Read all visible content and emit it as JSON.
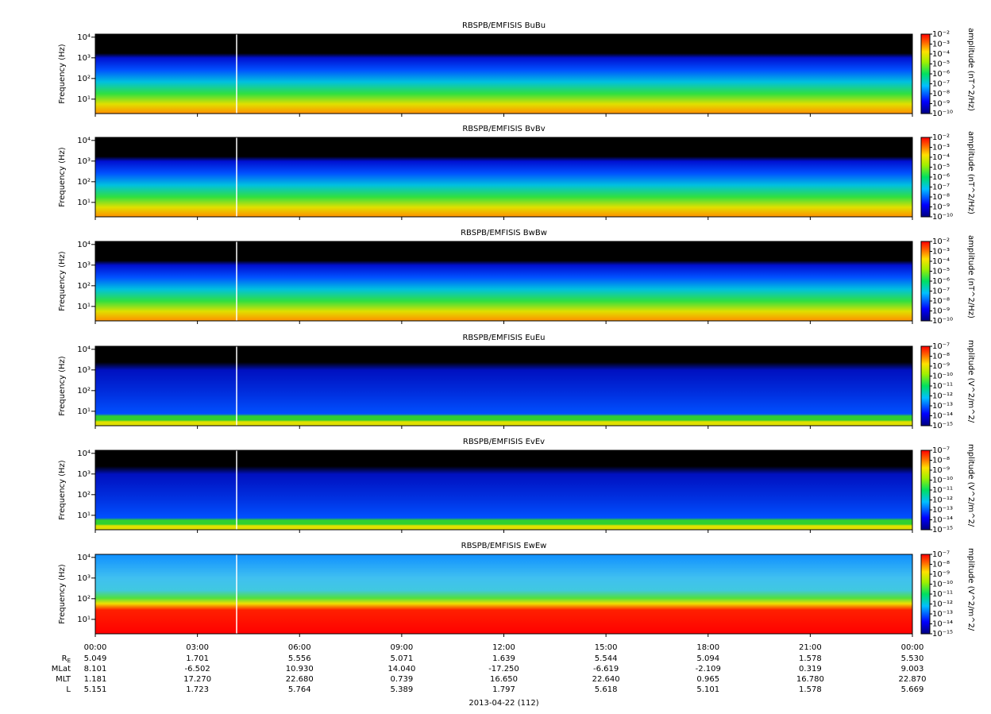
{
  "chart_data": [
    {
      "type": "spectrogram",
      "title": "RBSPB/EMFISIS  BuBu",
      "ylabel": "Frequency (Hz)",
      "log_y": true,
      "ylim": [
        2,
        14000
      ],
      "yticks": [
        {
          "value": 10,
          "label": "10¹"
        },
        {
          "value": 100,
          "label": "10²"
        },
        {
          "value": 1000,
          "label": "10³"
        },
        {
          "value": 10000,
          "label": "10⁴"
        }
      ],
      "colorbar_label": "amplitude (nT^2/Hz)",
      "clim": [
        1e-10,
        0.01
      ],
      "cticks": [
        {
          "value": 0.01,
          "label": "10⁻²"
        },
        {
          "value": 0.001,
          "label": "10⁻³"
        },
        {
          "value": 0.0001,
          "label": "10⁻⁴"
        },
        {
          "value": 1e-05,
          "label": "10⁻⁵"
        },
        {
          "value": 1e-06,
          "label": "10⁻⁶"
        },
        {
          "value": 1e-07,
          "label": "10⁻⁷"
        },
        {
          "value": 1e-08,
          "label": "10⁻⁸"
        },
        {
          "value": 1e-09,
          "label": "10⁻⁹"
        },
        {
          "value": 1e-10,
          "label": "10⁻¹⁰"
        }
      ]
    },
    {
      "type": "spectrogram",
      "title": "RBSPB/EMFISIS  BvBv",
      "ylabel": "Frequency (Hz)",
      "log_y": true,
      "ylim": [
        2,
        14000
      ],
      "yticks": [
        {
          "value": 10,
          "label": "10¹"
        },
        {
          "value": 100,
          "label": "10²"
        },
        {
          "value": 1000,
          "label": "10³"
        },
        {
          "value": 10000,
          "label": "10⁴"
        }
      ],
      "colorbar_label": "amplitude (nT^2/Hz)",
      "clim": [
        1e-10,
        0.01
      ],
      "cticks": [
        {
          "value": 0.01,
          "label": "10⁻²"
        },
        {
          "value": 0.001,
          "label": "10⁻³"
        },
        {
          "value": 0.0001,
          "label": "10⁻⁴"
        },
        {
          "value": 1e-05,
          "label": "10⁻⁵"
        },
        {
          "value": 1e-06,
          "label": "10⁻⁶"
        },
        {
          "value": 1e-07,
          "label": "10⁻⁷"
        },
        {
          "value": 1e-08,
          "label": "10⁻⁸"
        },
        {
          "value": 1e-09,
          "label": "10⁻⁹"
        },
        {
          "value": 1e-10,
          "label": "10⁻¹⁰"
        }
      ]
    },
    {
      "type": "spectrogram",
      "title": "RBSPB/EMFISIS  BwBw",
      "ylabel": "Frequency (Hz)",
      "log_y": true,
      "ylim": [
        2,
        14000
      ],
      "yticks": [
        {
          "value": 10,
          "label": "10¹"
        },
        {
          "value": 100,
          "label": "10²"
        },
        {
          "value": 1000,
          "label": "10³"
        },
        {
          "value": 10000,
          "label": "10⁴"
        }
      ],
      "colorbar_label": "amplitude (nT^2/Hz)",
      "clim": [
        1e-10,
        0.01
      ],
      "cticks": [
        {
          "value": 0.01,
          "label": "10⁻²"
        },
        {
          "value": 0.001,
          "label": "10⁻³"
        },
        {
          "value": 0.0001,
          "label": "10⁻⁴"
        },
        {
          "value": 1e-05,
          "label": "10⁻⁵"
        },
        {
          "value": 1e-06,
          "label": "10⁻⁶"
        },
        {
          "value": 1e-07,
          "label": "10⁻⁷"
        },
        {
          "value": 1e-08,
          "label": "10⁻⁸"
        },
        {
          "value": 1e-09,
          "label": "10⁻⁹"
        },
        {
          "value": 1e-10,
          "label": "10⁻¹⁰"
        }
      ]
    },
    {
      "type": "spectrogram",
      "title": "RBSPB/EMFISIS  EuEu",
      "ylabel": "Frequency (Hz)",
      "log_y": true,
      "ylim": [
        2,
        14000
      ],
      "yticks": [
        {
          "value": 10,
          "label": "10¹"
        },
        {
          "value": 100,
          "label": "10²"
        },
        {
          "value": 1000,
          "label": "10³"
        },
        {
          "value": 10000,
          "label": "10⁴"
        }
      ],
      "colorbar_label": "mplitude (V^2/m^2/",
      "clim": [
        1e-15,
        1e-07
      ],
      "cticks": [
        {
          "value": 1e-07,
          "label": "10⁻⁷"
        },
        {
          "value": 1e-08,
          "label": "10⁻⁸"
        },
        {
          "value": 1e-09,
          "label": "10⁻⁹"
        },
        {
          "value": 1e-10,
          "label": "10⁻¹⁰"
        },
        {
          "value": 1e-11,
          "label": "10⁻¹¹"
        },
        {
          "value": 1e-12,
          "label": "10⁻¹²"
        },
        {
          "value": 1e-13,
          "label": "10⁻¹³"
        },
        {
          "value": 1e-14,
          "label": "10⁻¹⁴"
        },
        {
          "value": 1e-15,
          "label": "10⁻¹⁵"
        }
      ]
    },
    {
      "type": "spectrogram",
      "title": "RBSPB/EMFISIS  EvEv",
      "ylabel": "Frequency (Hz)",
      "log_y": true,
      "ylim": [
        2,
        14000
      ],
      "yticks": [
        {
          "value": 10,
          "label": "10¹"
        },
        {
          "value": 100,
          "label": "10²"
        },
        {
          "value": 1000,
          "label": "10³"
        },
        {
          "value": 10000,
          "label": "10⁴"
        }
      ],
      "colorbar_label": "mplitude (V^2/m^2/",
      "clim": [
        1e-15,
        1e-07
      ],
      "cticks": [
        {
          "value": 1e-07,
          "label": "10⁻⁷"
        },
        {
          "value": 1e-08,
          "label": "10⁻⁸"
        },
        {
          "value": 1e-09,
          "label": "10⁻⁹"
        },
        {
          "value": 1e-10,
          "label": "10⁻¹⁰"
        },
        {
          "value": 1e-11,
          "label": "10⁻¹¹"
        },
        {
          "value": 1e-12,
          "label": "10⁻¹²"
        },
        {
          "value": 1e-13,
          "label": "10⁻¹³"
        },
        {
          "value": 1e-14,
          "label": "10⁻¹⁴"
        },
        {
          "value": 1e-15,
          "label": "10⁻¹⁵"
        }
      ]
    },
    {
      "type": "spectrogram",
      "title": "RBSPB/EMFISIS  EwEw",
      "ylabel": "Frequency (Hz)",
      "log_y": true,
      "ylim": [
        2,
        14000
      ],
      "yticks": [
        {
          "value": 10,
          "label": "10¹"
        },
        {
          "value": 100,
          "label": "10²"
        },
        {
          "value": 1000,
          "label": "10³"
        },
        {
          "value": 10000,
          "label": "10⁴"
        }
      ],
      "colorbar_label": "mplitude (V^2/m^2/",
      "clim": [
        1e-15,
        1e-07
      ],
      "cticks": [
        {
          "value": 1e-07,
          "label": "10⁻⁷"
        },
        {
          "value": 1e-08,
          "label": "10⁻⁸"
        },
        {
          "value": 1e-09,
          "label": "10⁻⁹"
        },
        {
          "value": 1e-10,
          "label": "10⁻¹⁰"
        },
        {
          "value": 1e-11,
          "label": "10⁻¹¹"
        },
        {
          "value": 1e-12,
          "label": "10⁻¹²"
        },
        {
          "value": 1e-13,
          "label": "10⁻¹³"
        },
        {
          "value": 1e-14,
          "label": "10⁻¹⁴"
        },
        {
          "value": 1e-15,
          "label": "10⁻¹⁵"
        }
      ],
      "xlim": [
        0,
        24
      ],
      "xticks": [
        {
          "value": 0,
          "label": "00:00"
        },
        {
          "value": 3,
          "label": "03:00"
        },
        {
          "value": 6,
          "label": "06:00"
        },
        {
          "value": 9,
          "label": "09:00"
        },
        {
          "value": 12,
          "label": "12:00"
        },
        {
          "value": 15,
          "label": "15:00"
        },
        {
          "value": 18,
          "label": "18:00"
        },
        {
          "value": 21,
          "label": "21:00"
        },
        {
          "value": 24,
          "label": "00:00"
        }
      ],
      "xlabel": "2013-04-22 (112)"
    }
  ],
  "ephemeris": [
    {
      "label": "R",
      "subscript": "E",
      "values": [
        "5.049",
        "1.701",
        "5.556",
        "5.071",
        "1.639",
        "5.544",
        "5.094",
        "1.578",
        "5.530"
      ]
    },
    {
      "label": "MLat",
      "values": [
        "8.101",
        "-6.502",
        "10.930",
        "14.040",
        "-17.250",
        "-6.619",
        "-2.109",
        "0.319",
        "9.003"
      ]
    },
    {
      "label": "MLT",
      "values": [
        "1.181",
        "17.270",
        "22.680",
        "0.739",
        "16.650",
        "22.640",
        "0.965",
        "16.780",
        "22.870"
      ]
    },
    {
      "label": "L",
      "values": [
        "5.151",
        "1.723",
        "5.764",
        "5.389",
        "1.797",
        "5.618",
        "5.101",
        "1.578",
        "5.669"
      ]
    }
  ]
}
